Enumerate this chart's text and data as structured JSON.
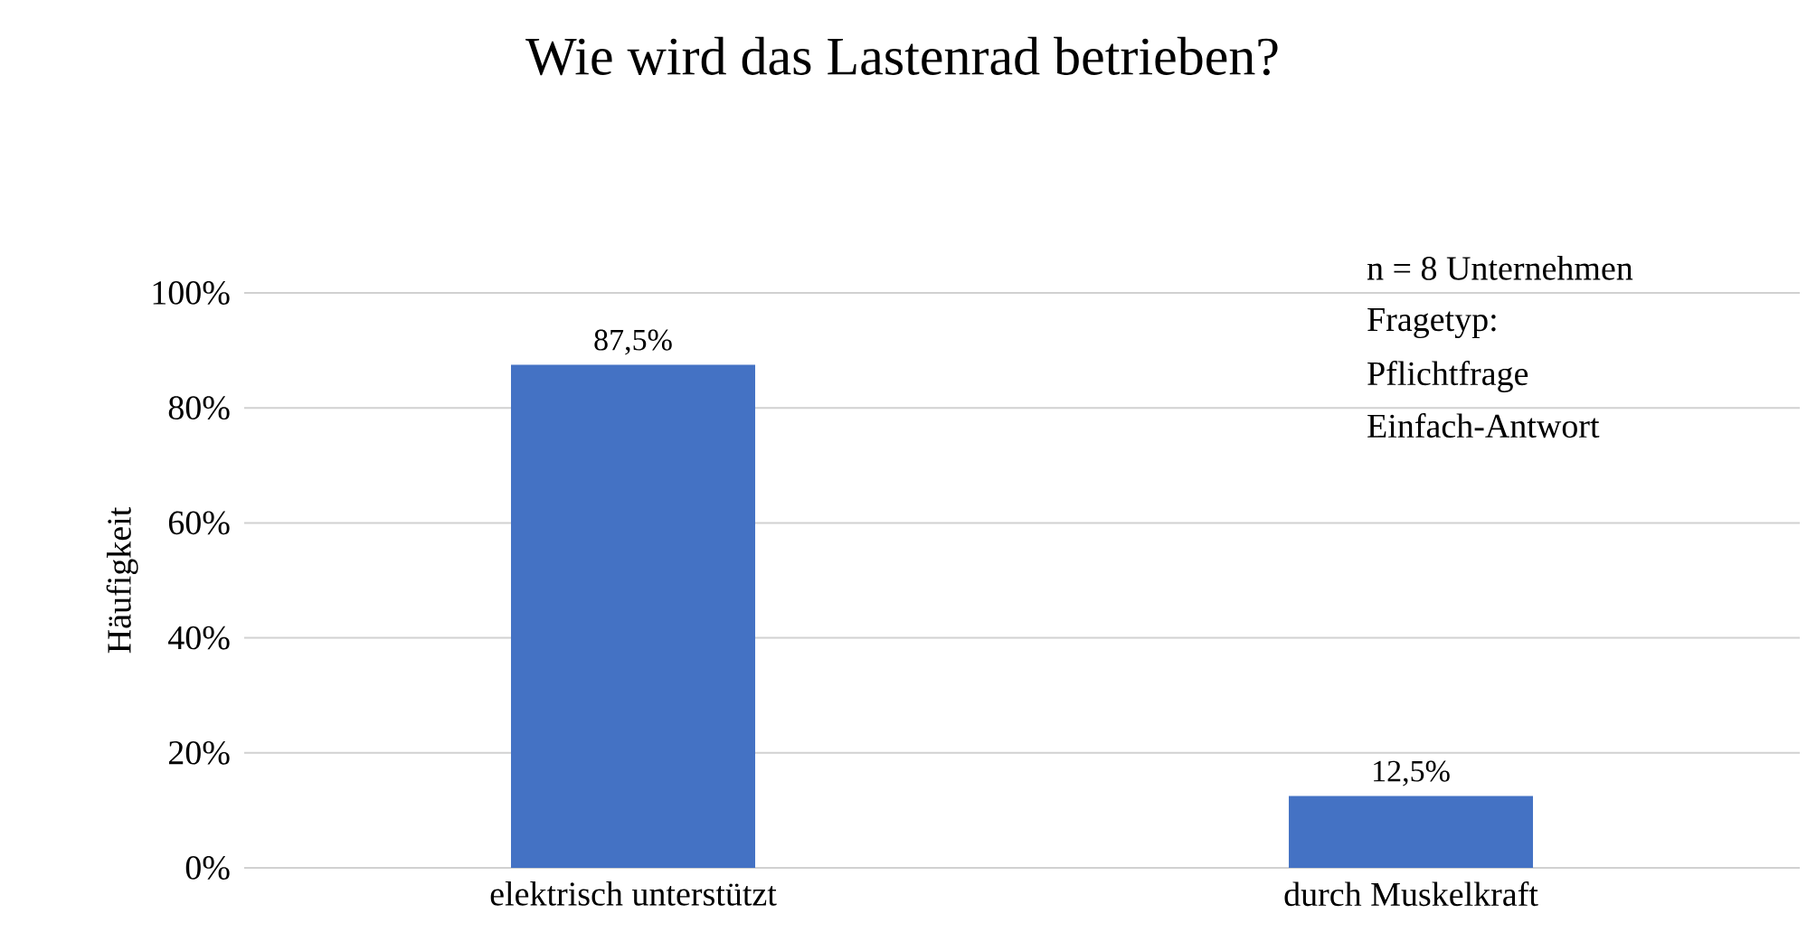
{
  "chart_data": {
    "type": "bar",
    "title": "Wie wird das Lastenrad betrieben?",
    "ylabel": "Häufigkeit",
    "categories": [
      "elektrisch unterstützt",
      "durch Muskelkraft"
    ],
    "values": [
      87.5,
      12.5
    ],
    "color": "#4472c4",
    "value_labels": [
      "87,5%",
      "12,5%"
    ],
    "ylim": [
      0,
      100
    ],
    "yticks": [
      {
        "value": 0,
        "label": "0%"
      },
      {
        "value": 20,
        "label": "20%"
      },
      {
        "value": 40,
        "label": "40%"
      },
      {
        "value": 60,
        "label": "60%"
      },
      {
        "value": 80,
        "label": "80%"
      },
      {
        "value": 100,
        "label": "100%"
      }
    ],
    "grid": "y",
    "annotations": [
      "n = 8 Unternehmen",
      "Fragetyp:",
      "Pflichtfrage",
      "Einfach-Antwort"
    ]
  }
}
